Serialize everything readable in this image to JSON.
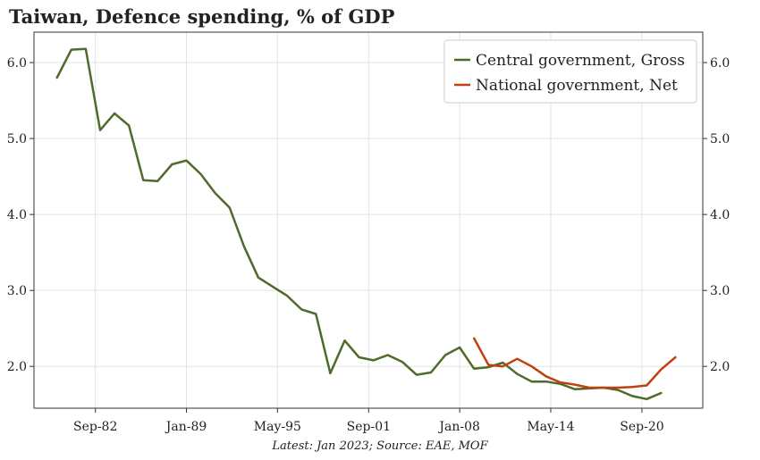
{
  "title": "Taiwan, Defence spending, % of GDP",
  "footnote": "Latest: Jan 2023; Source: EAE, MOF",
  "colors": {
    "gross": "#4f6b2a",
    "net": "#c0400f",
    "grid": "#e3e3e3",
    "axis": "#333333"
  },
  "chart_data": {
    "type": "line",
    "title": "Taiwan, Defence spending, % of GDP",
    "xlabel": "",
    "ylabel": "",
    "ylim": [
      1.45,
      6.4
    ],
    "xlim": [
      1978.4,
      2024.9
    ],
    "x_unit": "year",
    "y_ticks": [
      2.0,
      3.0,
      4.0,
      5.0,
      6.0
    ],
    "y_tick_labels": [
      "2.0",
      "3.0",
      "4.0",
      "5.0",
      "6.0"
    ],
    "x_ticks": [
      1982.67,
      1989.0,
      1995.33,
      2001.67,
      2008.0,
      2014.33,
      2020.67
    ],
    "x_tick_labels": [
      "Sep-82",
      "Jan-89",
      "May-95",
      "Sep-01",
      "Jan-08",
      "May-14",
      "Sep-20"
    ],
    "grid": true,
    "legend_position": "top-right",
    "secondary_y_axis": "mirrored",
    "series": [
      {
        "name": "Central government, Gross",
        "color": "#4f6b2a",
        "x": [
          1980,
          1981,
          1982,
          1983,
          1984,
          1985,
          1986,
          1987,
          1988,
          1989,
          1990,
          1991,
          1992,
          1993,
          1994,
          1995,
          1996,
          1997,
          1998,
          1999,
          2000,
          2001,
          2002,
          2003,
          2004,
          2005,
          2006,
          2007,
          2008,
          2009,
          2010,
          2011,
          2012,
          2013,
          2014,
          2015,
          2016,
          2017,
          2018,
          2019,
          2020,
          2021,
          2022,
          2023
        ],
        "values": [
          5.8,
          6.17,
          6.18,
          5.11,
          5.33,
          5.17,
          4.45,
          4.44,
          4.66,
          4.71,
          4.53,
          4.28,
          4.09,
          3.58,
          3.17,
          3.05,
          2.93,
          2.75,
          2.69,
          1.91,
          2.34,
          2.12,
          2.08,
          2.15,
          2.06,
          1.89,
          1.92,
          2.15,
          2.25,
          1.97,
          1.99,
          2.05,
          1.9,
          1.8,
          1.8,
          1.77,
          1.7,
          1.71,
          1.72,
          1.69,
          1.61,
          1.57,
          1.65,
          null
        ]
      },
      {
        "name": "National government, Net",
        "color": "#c0400f",
        "x": [
          2009,
          2010,
          2011,
          2012,
          2013,
          2014,
          2015,
          2016,
          2017,
          2018,
          2019,
          2020,
          2021,
          2022,
          2023
        ],
        "values": [
          2.37,
          2.02,
          2.0,
          2.1,
          2.0,
          1.87,
          1.79,
          1.76,
          1.72,
          1.72,
          1.72,
          1.73,
          1.75,
          1.96,
          2.12
        ]
      }
    ]
  }
}
